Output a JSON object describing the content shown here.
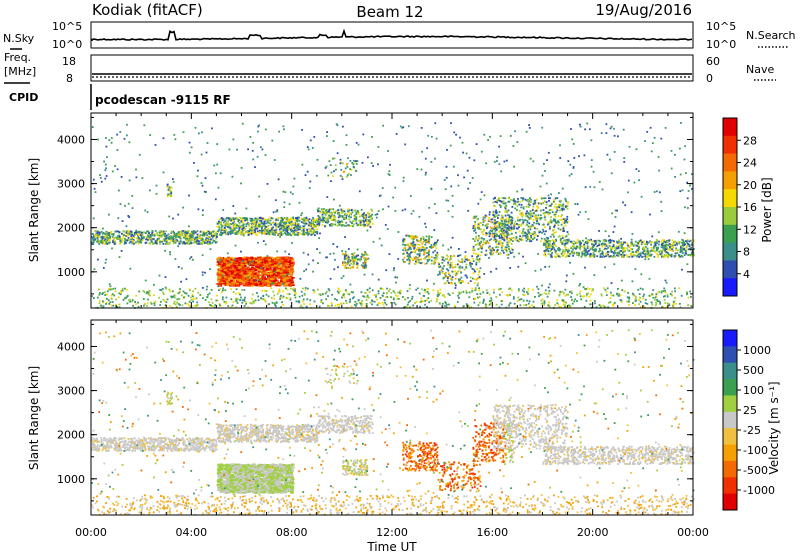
{
  "header": {
    "station": "Kodiak (fitACF)",
    "beam": "Beam 12",
    "date": "19/Aug/2016"
  },
  "noise_panel": {
    "left_label": "N.Sky",
    "right_label": "N.Search",
    "left_ticks": [
      "10^5",
      "10^0"
    ],
    "right_ticks": [
      "10^5",
      "10^0"
    ]
  },
  "freq_panel": {
    "left_label_line1": "Freq.",
    "left_label_line2": "[MHz]",
    "right_label": "Nave",
    "left_ticks": [
      "18",
      "8"
    ],
    "right_ticks": [
      "60",
      "0"
    ]
  },
  "cpid_panel": {
    "label": "CPID",
    "text": "pcodescan -9115 RF"
  },
  "colors": {
    "power": [
      "#1a1aff",
      "#2f4fb0",
      "#3a8f8a",
      "#3aa050",
      "#9acb3a",
      "#f5d800",
      "#f5a000",
      "#f56a00",
      "#f03000",
      "#e00000"
    ],
    "velocity": [
      "#e00000",
      "#f03000",
      "#f56a00",
      "#f5a000",
      "#f0c040",
      "#c8c8c8",
      "#a0d040",
      "#3aa050",
      "#3a8f8a",
      "#2f4fb0",
      "#1a1aff"
    ]
  },
  "chart_data": [
    {
      "type": "heatmap",
      "title": "Power",
      "xlabel": "",
      "ylabel": "Slant Range [km]",
      "xlim": [
        0,
        24
      ],
      "ylim": [
        180,
        4600
      ],
      "yticks": [
        "1000",
        "2000",
        "3000",
        "4000"
      ],
      "colorbar": {
        "label": "Power [dB]",
        "ticks": [
          "4",
          "8",
          "12",
          "16",
          "20",
          "24",
          "28"
        ],
        "range": [
          0,
          30
        ]
      }
    },
    {
      "type": "heatmap",
      "title": "Velocity",
      "xlabel": "Time UT",
      "ylabel": "Slant Range [km]",
      "xlim": [
        0,
        24
      ],
      "ylim": [
        180,
        4600
      ],
      "xticks": [
        "00:00",
        "04:00",
        "08:00",
        "12:00",
        "16:00",
        "20:00",
        "00:00"
      ],
      "yticks": [
        "1000",
        "2000",
        "3000",
        "4000"
      ],
      "colorbar": {
        "label": "Velocity [m s⁻¹]",
        "ticks": [
          "1000",
          "500",
          "100",
          "25",
          "-25",
          "-100",
          "-500",
          "-1000"
        ]
      }
    }
  ]
}
